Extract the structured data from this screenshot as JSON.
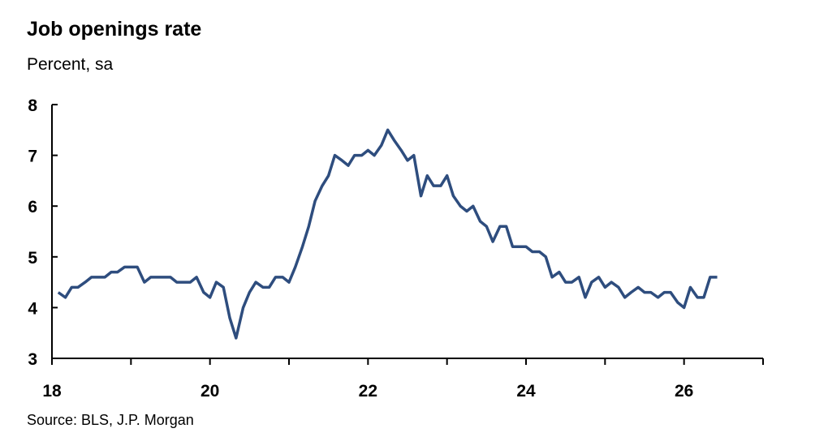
{
  "chart_data": {
    "type": "line",
    "title": "Job openings rate",
    "subtitle": "Percent, sa",
    "source": "Source: BLS, J.P. Morgan",
    "xlim": [
      18,
      27
    ],
    "xticks": [
      18,
      20,
      22,
      24,
      26
    ],
    "xminor_ticks": [
      19,
      21,
      23,
      25,
      27
    ],
    "ylim": [
      3,
      8
    ],
    "yticks": [
      3,
      4,
      5,
      6,
      7,
      8
    ],
    "grid": false,
    "x": [
      18.08,
      18.17,
      18.25,
      18.33,
      18.42,
      18.5,
      18.58,
      18.67,
      18.75,
      18.83,
      18.92,
      19,
      19.08,
      19.17,
      19.25,
      19.33,
      19.42,
      19.5,
      19.58,
      19.67,
      19.75,
      19.83,
      19.92,
      20,
      20.08,
      20.17,
      20.25,
      20.33,
      20.42,
      20.5,
      20.58,
      20.67,
      20.75,
      20.83,
      20.92,
      21,
      21.08,
      21.17,
      21.25,
      21.33,
      21.42,
      21.5,
      21.58,
      21.67,
      21.75,
      21.83,
      21.92,
      22,
      22.08,
      22.17,
      22.25,
      22.33,
      22.42,
      22.5,
      22.58,
      22.67,
      22.75,
      22.83,
      22.92,
      23,
      23.08,
      23.17,
      23.25,
      23.33,
      23.42,
      23.5,
      23.58,
      23.67,
      23.75,
      23.83,
      23.92,
      24,
      24.08,
      24.17,
      24.25,
      24.33,
      24.42,
      24.5,
      24.58,
      24.67,
      24.75,
      24.83,
      24.92,
      25,
      25.08,
      25.17,
      25.25,
      25.33,
      25.42,
      25.5,
      25.58,
      25.67,
      25.75,
      25.83,
      25.92,
      26,
      26.08,
      26.17,
      26.25,
      26.33,
      26.42
    ],
    "series": [
      {
        "color": "#2e4d7e",
        "values": [
          4.3,
          4.2,
          4.4,
          4.4,
          4.5,
          4.6,
          4.6,
          4.6,
          4.7,
          4.7,
          4.8,
          4.8,
          4.8,
          4.5,
          4.6,
          4.6,
          4.6,
          4.6,
          4.5,
          4.5,
          4.5,
          4.6,
          4.3,
          4.2,
          4.5,
          4.4,
          3.8,
          3.4,
          4.0,
          4.3,
          4.5,
          4.4,
          4.4,
          4.6,
          4.6,
          4.5,
          4.8,
          5.2,
          5.6,
          6.1,
          6.4,
          6.6,
          7.0,
          6.9,
          6.8,
          7.0,
          7.0,
          7.1,
          7.0,
          7.2,
          7.5,
          7.3,
          7.1,
          6.9,
          7.0,
          6.2,
          6.6,
          6.4,
          6.4,
          6.6,
          6.2,
          6.0,
          5.9,
          6.0,
          5.7,
          5.6,
          5.3,
          5.6,
          5.6,
          5.2,
          5.2,
          5.2,
          5.1,
          5.1,
          5.0,
          4.6,
          4.7,
          4.5,
          4.5,
          4.6,
          4.2,
          4.5,
          4.6,
          4.4,
          4.5,
          4.4,
          4.2,
          4.3,
          4.4,
          4.3,
          4.3,
          4.2,
          4.3,
          4.3,
          4.1,
          4.0,
          4.4,
          4.2,
          4.2,
          4.6,
          4.6
        ]
      }
    ]
  }
}
